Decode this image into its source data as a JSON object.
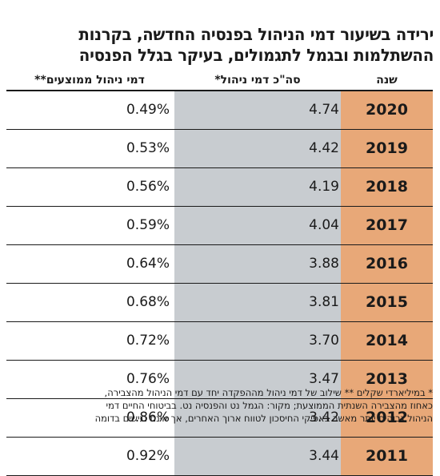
{
  "chart_data": {
    "type": "table",
    "title_lines": [
      "ירידה בשיעור דמי הניהול בפנסיה החדשה, בקרנות",
      "ההשתלמות ובגמל לתגמולים, בעיקר בגלל הפנסיה"
    ],
    "columns": [
      "שנה",
      "סה\"כ דמי ניהול*",
      "דמי ניהול ממוצעים**"
    ],
    "rows": [
      {
        "year": "2020",
        "fees": "4.74",
        "mgmt": "0.49%"
      },
      {
        "year": "2019",
        "fees": "4.42",
        "mgmt": "0.53%"
      },
      {
        "year": "2018",
        "fees": "4.19",
        "mgmt": "0.56%"
      },
      {
        "year": "2017",
        "fees": "4.04",
        "mgmt": "0.59%"
      },
      {
        "year": "2016",
        "fees": "3.88",
        "mgmt": "0.64%"
      },
      {
        "year": "2015",
        "fees": "3.81",
        "mgmt": "0.68%"
      },
      {
        "year": "2014",
        "fees": "3.70",
        "mgmt": "0.72%"
      },
      {
        "year": "2013",
        "fees": "3.47",
        "mgmt": "0.76%"
      },
      {
        "year": "2012",
        "fees": "3.42",
        "mgmt": "0.86%"
      },
      {
        "year": "2011",
        "fees": "3.44",
        "mgmt": "0.92%"
      }
    ],
    "footnote_lines": [
      "* במיליארדי שקלים ** שילוב של דמי ניהול מההפקדה יחד עם דמי הניהול מהצבירה,",
      "כאחוז מהצבירה השנתית הממוצעת; מקור: הגמל נט והפנסיה נט. בביטוחי החיים דמי",
      "הניהול גבוהים יותר מאשר באפיקי החיסכון לטווח ארוך האחרים, אך אינם נגישים בדומה"
    ]
  },
  "colors": {
    "year_column": "#e8a878",
    "fees_column": "#c8ccd0",
    "lines": "#1a1a1a"
  }
}
